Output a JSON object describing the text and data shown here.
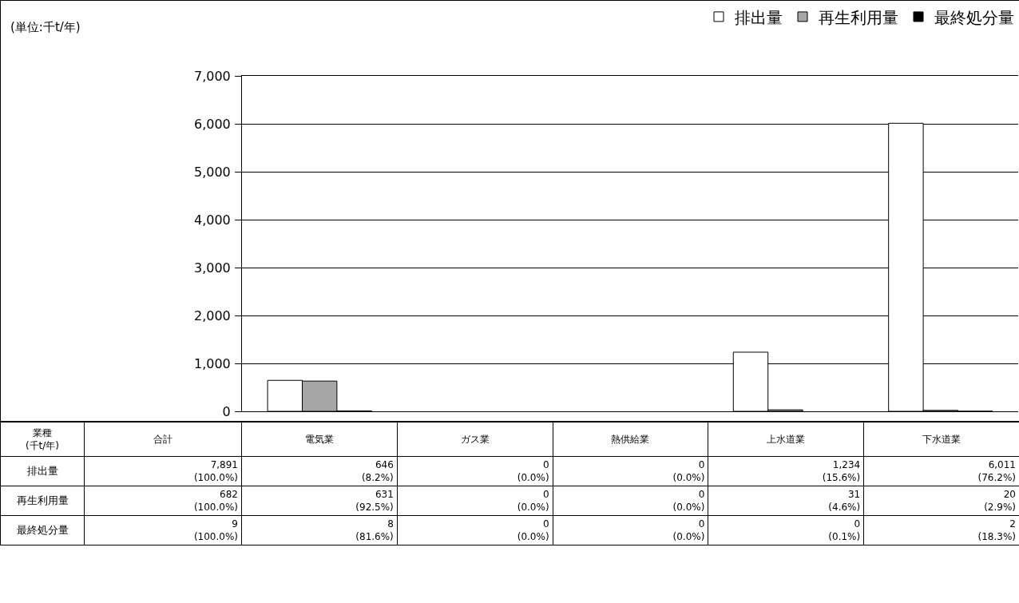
{
  "chart_data": {
    "type": "bar",
    "categories": [
      "電気業",
      "ガス業",
      "熱供給業",
      "上水道業",
      "下水道業"
    ],
    "series": [
      {
        "name": "排出量",
        "color": "#ffffff",
        "values": [
          646,
          0,
          0,
          1234,
          6011
        ],
        "value_labels": [
          "646\n(8.2%)",
          "0\n(0.0%)",
          "0\n(0.0%)",
          "1,234\n(15.6%)",
          "6,011\n(76.2%)"
        ]
      },
      {
        "name": "再生利用量",
        "color": "#a6a6a6",
        "values": [
          631,
          0,
          0,
          31,
          20
        ],
        "value_labels": [
          "631\n(92.5%)",
          "0\n(0.0%)",
          "0\n(0.0%)",
          "31\n(4.6%)",
          "20\n(2.9%)"
        ]
      },
      {
        "name": "最終処分量",
        "color": "#000000",
        "values": [
          8,
          0,
          0,
          0,
          2
        ],
        "value_labels": [
          "8\n(81.6%)",
          "0\n(0.0%)",
          "0\n(0.0%)",
          "0\n(0.1%)",
          "2\n(18.3%)"
        ]
      }
    ],
    "ylim": [
      0,
      7000
    ],
    "yticks": [
      {
        "value": 0,
        "label": "0"
      },
      {
        "value": 1000,
        "label": "1,000"
      },
      {
        "value": 2000,
        "label": "2,000"
      },
      {
        "value": 3000,
        "label": "3,000"
      },
      {
        "value": 4000,
        "label": "4,000"
      },
      {
        "value": 5000,
        "label": "5,000"
      },
      {
        "value": 6000,
        "label": "6,000"
      },
      {
        "value": 7000,
        "label": "7,000"
      }
    ],
    "grid": "y",
    "legend": "top right",
    "tick_labels": "y",
    "annotations": [
      "(単位:千t/年)",
      "業種\n(千t/年)",
      "合計",
      "7,891\n(100.0%)",
      "682\n(100.0%)",
      "9\n(100.0%)"
    ]
  }
}
